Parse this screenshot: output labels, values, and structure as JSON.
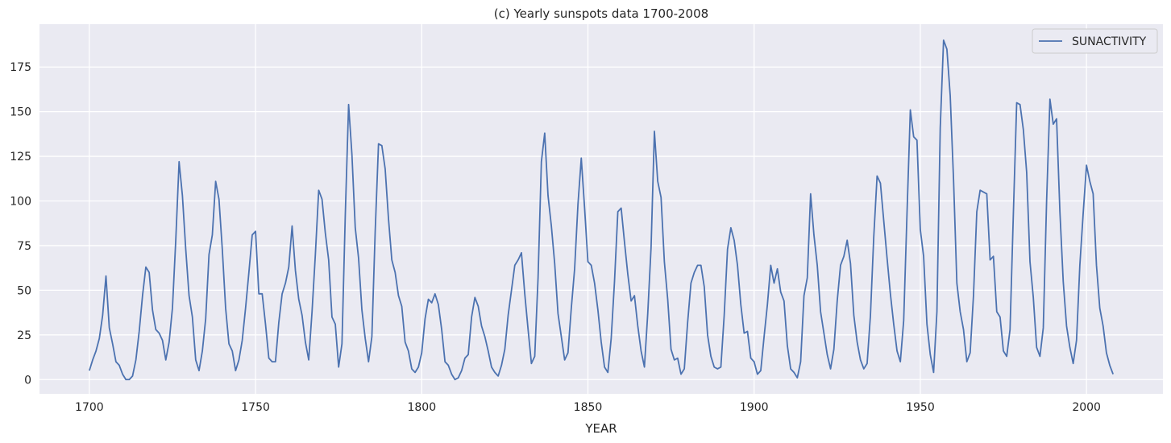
{
  "chart_data": {
    "type": "line",
    "title": "(c) Yearly sunspots data 1700-2008",
    "xlabel": "YEAR",
    "ylabel": "",
    "xlim": [
      1685,
      2023
    ],
    "ylim": [
      -8,
      199
    ],
    "xticks": [
      1700,
      1750,
      1800,
      1850,
      1900,
      1950,
      2000
    ],
    "yticks": [
      0,
      25,
      50,
      75,
      100,
      125,
      150,
      175
    ],
    "grid": true,
    "legend": "top-right",
    "series": [
      {
        "name": "SUNACTIVITY",
        "color": "#4c72b0",
        "x_start": 1700,
        "values": [
          5,
          11,
          16,
          23,
          36,
          58,
          29,
          20,
          10,
          8,
          3,
          0,
          0,
          2,
          11,
          27,
          47,
          63,
          60,
          39,
          28,
          26,
          22,
          11,
          21,
          40,
          78,
          122,
          103,
          73,
          47,
          35,
          11,
          5,
          16,
          34,
          70,
          81,
          111,
          101,
          73,
          40,
          20,
          16,
          5,
          11,
          22,
          40,
          60,
          81,
          83,
          48,
          48,
          31,
          12,
          10,
          10,
          32,
          48,
          54,
          63,
          86,
          61,
          45,
          36,
          21,
          11,
          38,
          70,
          106,
          101,
          82,
          67,
          35,
          31,
          7,
          20,
          92,
          154,
          126,
          85,
          68,
          39,
          23,
          10,
          24,
          83,
          132,
          131,
          118,
          90,
          67,
          60,
          47,
          41,
          21,
          16,
          6,
          4,
          7,
          15,
          34,
          45,
          43,
          48,
          42,
          28,
          10,
          8,
          3,
          0,
          1,
          5,
          12,
          14,
          35,
          46,
          41,
          30,
          24,
          16,
          7,
          4,
          2,
          8,
          17,
          36,
          50,
          64,
          67,
          71,
          48,
          28,
          9,
          13,
          57,
          122,
          138,
          103,
          86,
          65,
          37,
          24,
          11,
          15,
          40,
          62,
          98,
          124,
          96,
          66,
          64,
          54,
          39,
          21,
          7,
          4,
          23,
          55,
          94,
          96,
          77,
          59,
          44,
          47,
          30,
          16,
          7,
          37,
          74,
          139,
          111,
          102,
          66,
          45,
          17,
          11,
          12,
          3,
          6,
          32,
          54,
          60,
          64,
          64,
          52,
          25,
          13,
          7,
          6,
          7,
          36,
          73,
          85,
          78,
          64,
          42,
          26,
          27,
          12,
          10,
          3,
          5,
          24,
          42,
          64,
          54,
          62,
          49,
          44,
          19,
          6,
          4,
          1,
          10,
          47,
          57,
          104,
          81,
          64,
          38,
          26,
          14,
          6,
          17,
          44,
          64,
          69,
          78,
          65,
          36,
          21,
          11,
          6,
          9,
          36,
          80,
          114,
          110,
          89,
          68,
          48,
          31,
          16,
          10,
          33,
          93,
          151,
          136,
          134,
          84,
          69,
          31,
          14,
          4,
          38,
          141,
          190,
          185,
          159,
          112,
          54,
          38,
          28,
          10,
          15,
          47,
          94,
          106,
          105,
          104,
          67,
          69,
          38,
          35,
          16,
          13,
          28,
          93,
          155,
          154,
          140,
          116,
          66,
          46,
          18,
          13,
          29,
          100,
          157,
          143,
          146,
          94,
          55,
          30,
          18,
          9,
          22,
          64,
          93,
          120,
          111,
          104,
          64,
          40,
          30,
          15,
          8,
          3
        ]
      }
    ]
  }
}
